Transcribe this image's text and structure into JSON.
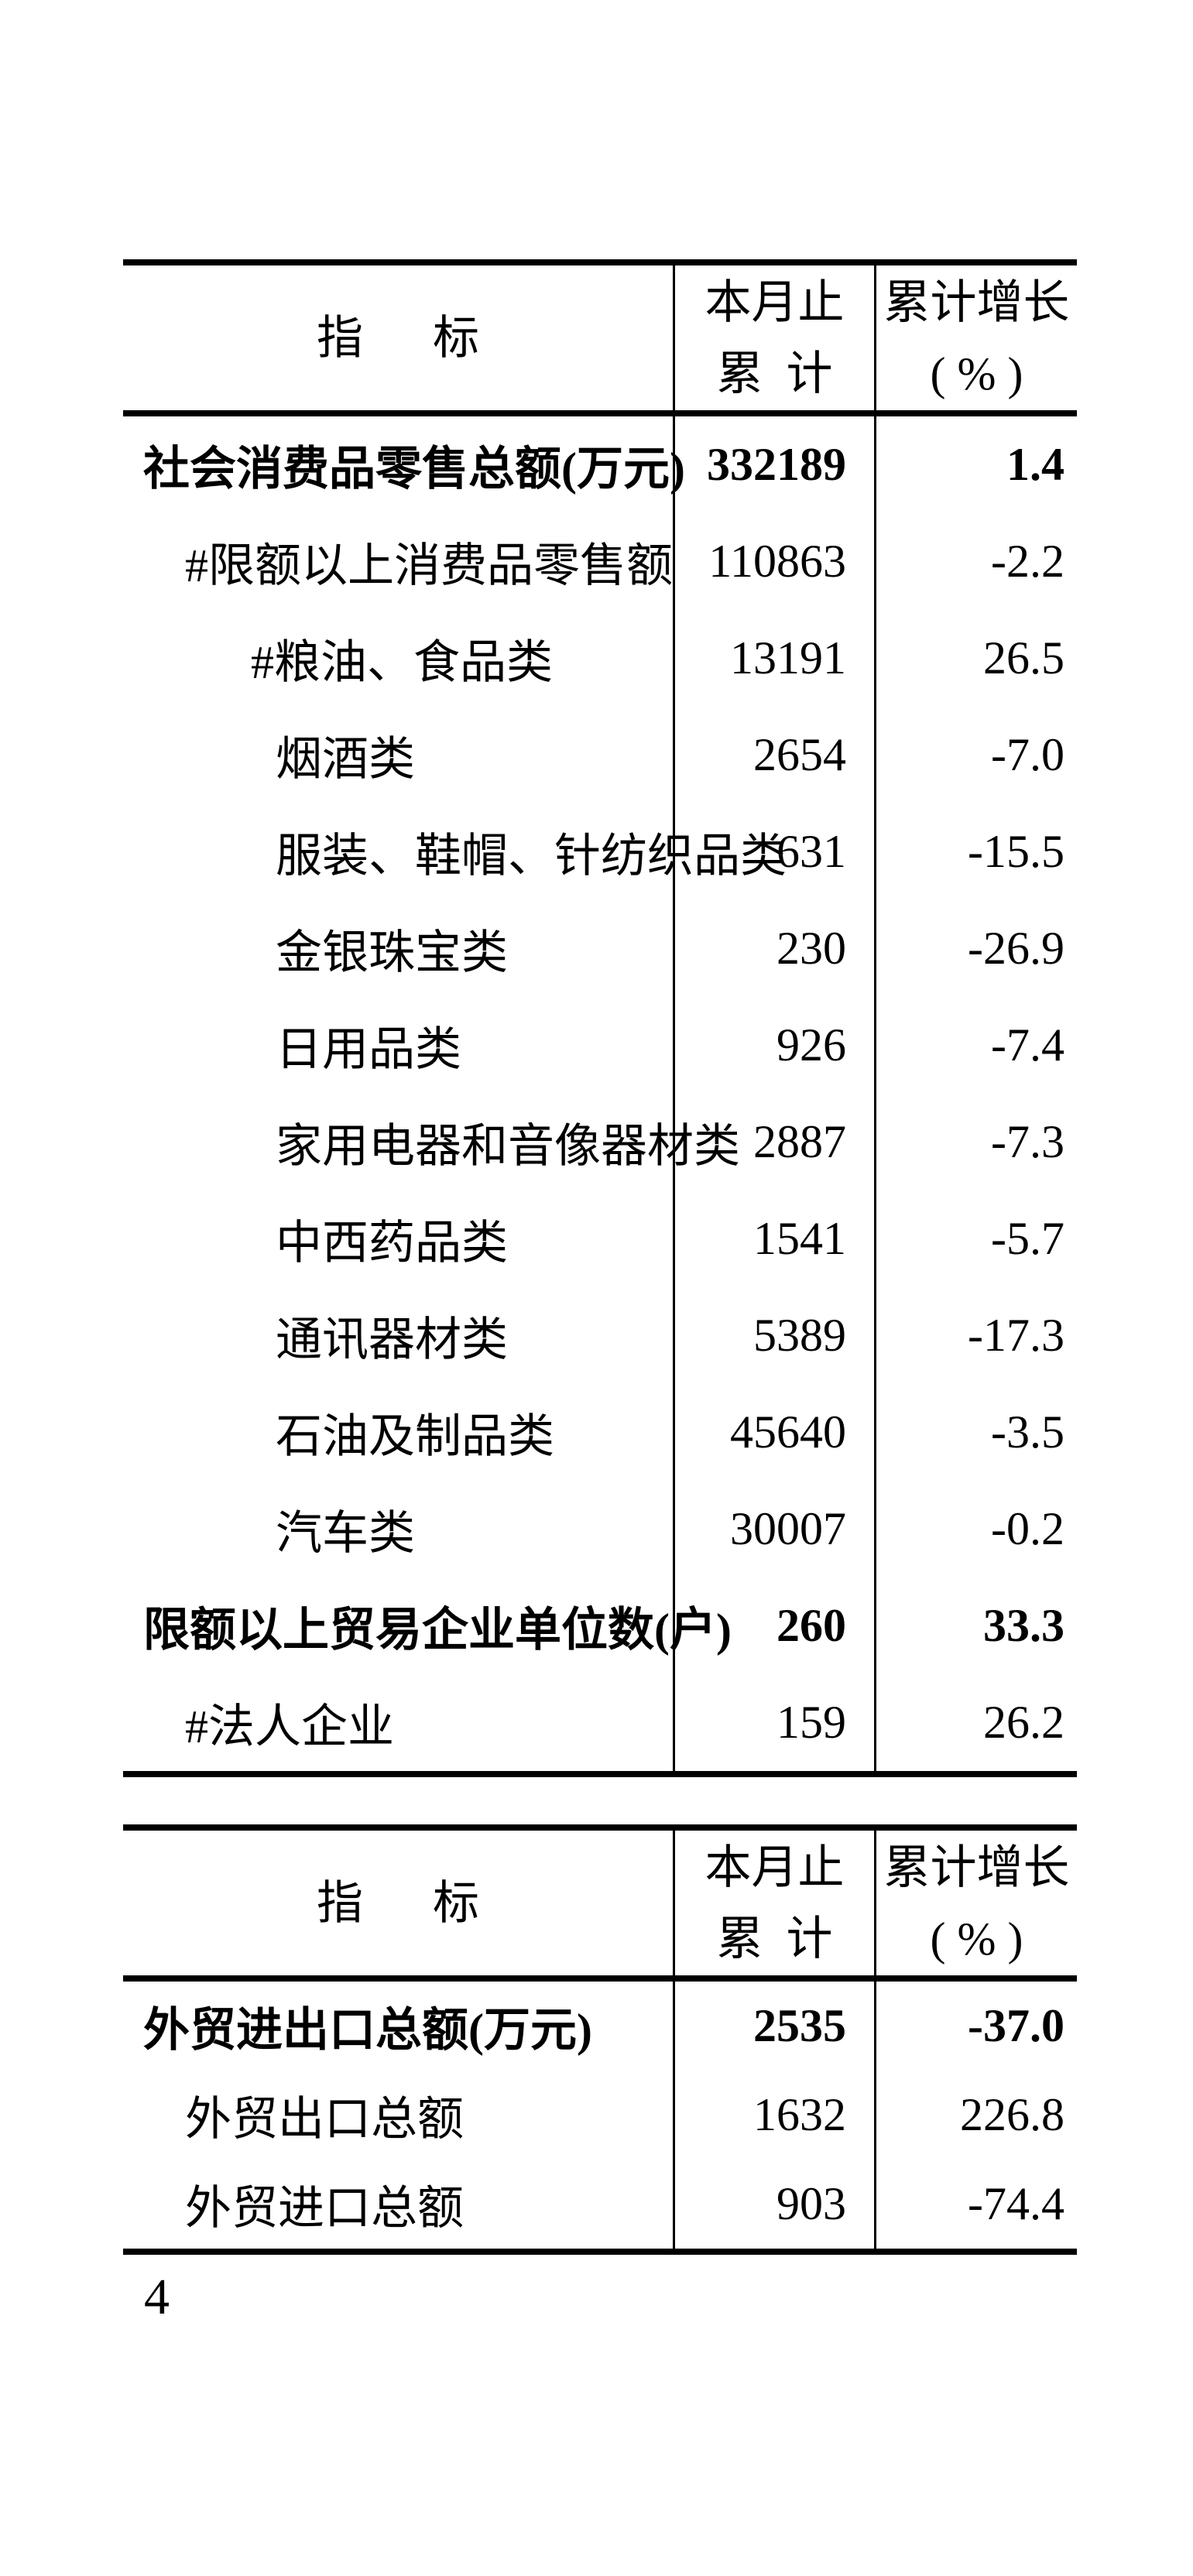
{
  "page": {
    "number": "4",
    "background_color": "#ffffff",
    "text_color": "#000000",
    "border_color": "#000000"
  },
  "tables": [
    {
      "name": "retail-sales-indicators",
      "header": {
        "col1": "指      标",
        "col2_line1": "本月止",
        "col2_line2": "累  计",
        "col3_line1": "累计增长",
        "col3_line2": "( % )"
      },
      "rows": [
        {
          "label": "社会消费品零售总额(万元)",
          "value": "332189",
          "growth": "1.4",
          "bold": true,
          "indent": 0
        },
        {
          "label": "#限额以上消费品零售额",
          "value": "110863",
          "growth": "-2.2",
          "bold": false,
          "indent": 1
        },
        {
          "label": "#粮油、食品类",
          "value": "13191",
          "growth": "26.5",
          "bold": false,
          "indent": 2
        },
        {
          "label": "烟酒类",
          "value": "2654",
          "growth": "-7.0",
          "bold": false,
          "indent": 3
        },
        {
          "label": "服装、鞋帽、针纺织品类",
          "value": "631",
          "growth": "-15.5",
          "bold": false,
          "indent": 3
        },
        {
          "label": "金银珠宝类",
          "value": "230",
          "growth": "-26.9",
          "bold": false,
          "indent": 3
        },
        {
          "label": "日用品类",
          "value": "926",
          "growth": "-7.4",
          "bold": false,
          "indent": 3
        },
        {
          "label": "家用电器和音像器材类",
          "value": "2887",
          "growth": "-7.3",
          "bold": false,
          "indent": 3
        },
        {
          "label": "中西药品类",
          "value": "1541",
          "growth": "-5.7",
          "bold": false,
          "indent": 3
        },
        {
          "label": "通讯器材类",
          "value": "5389",
          "growth": "-17.3",
          "bold": false,
          "indent": 3
        },
        {
          "label": "石油及制品类",
          "value": "45640",
          "growth": "-3.5",
          "bold": false,
          "indent": 3
        },
        {
          "label": "汽车类",
          "value": "30007",
          "growth": "-0.2",
          "bold": false,
          "indent": 3
        },
        {
          "label": "限额以上贸易企业单位数(户)",
          "value": "260",
          "growth": "33.3",
          "bold": true,
          "indent": 0
        },
        {
          "label": "#法人企业",
          "value": "159",
          "growth": "26.2",
          "bold": false,
          "indent": 1
        }
      ]
    },
    {
      "name": "foreign-trade-indicators",
      "header": {
        "col1": "指      标",
        "col2_line1": "本月止",
        "col2_line2": "累  计",
        "col3_line1": "累计增长",
        "col3_line2": "( % )"
      },
      "rows": [
        {
          "label": "外贸进出口总额(万元)",
          "value": "2535",
          "growth": "-37.0",
          "bold": true,
          "indent": 0
        },
        {
          "label": "外贸出口总额",
          "value": "1632",
          "growth": "226.8",
          "bold": false,
          "indent": 1
        },
        {
          "label": "外贸进口总额",
          "value": "903",
          "growth": "-74.4",
          "bold": false,
          "indent": 1
        }
      ]
    }
  ]
}
